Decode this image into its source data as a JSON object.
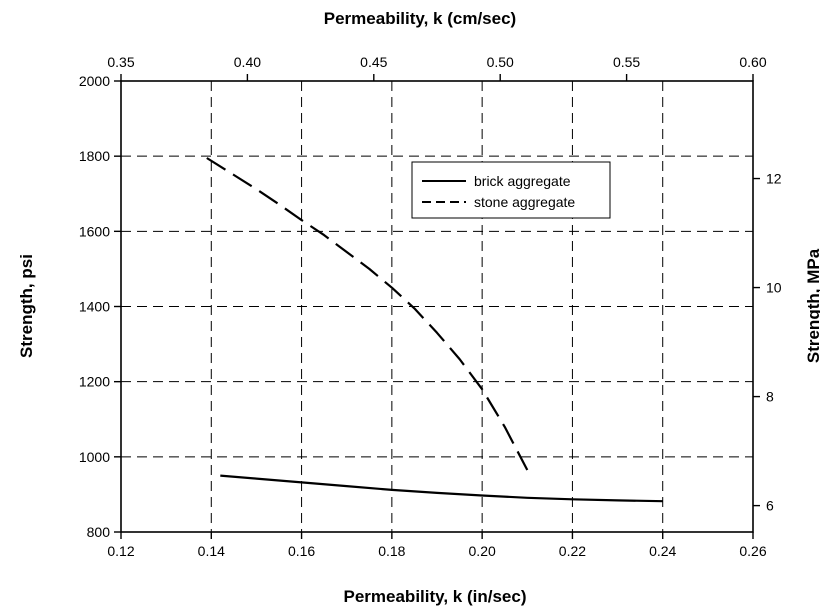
{
  "chart_data": {
    "type": "line",
    "xlabel": "Permeability, k (in/sec)",
    "x2label": "Permeability, k (cm/sec)",
    "ylabel": "Strength, psi",
    "y2label": "Strength, MPa",
    "xlim": [
      0.12,
      0.26
    ],
    "x2lim": [
      0.35,
      0.6
    ],
    "ylim": [
      800,
      2000
    ],
    "y2_ticks_shown": [
      6,
      8,
      10,
      12
    ],
    "x_ticks": [
      "0.12",
      "0.14",
      "0.16",
      "0.18",
      "0.20",
      "0.22",
      "0.24",
      "0.26"
    ],
    "x2_ticks": [
      "0.35",
      "0.40",
      "0.45",
      "0.50",
      "0.55",
      "0.60"
    ],
    "y_ticks": [
      "800",
      "1000",
      "1200",
      "1400",
      "1600",
      "1800",
      "2000"
    ],
    "y2_ticks": [
      "6",
      "8",
      "10",
      "12"
    ],
    "grid": true,
    "legend_position": "top-right",
    "series": [
      {
        "name": "brick aggregate",
        "style": "solid",
        "x": [
          0.142,
          0.15,
          0.16,
          0.17,
          0.18,
          0.19,
          0.2,
          0.21,
          0.22,
          0.23,
          0.24
        ],
        "y": [
          950,
          942,
          932,
          922,
          912,
          904,
          897,
          891,
          887,
          884,
          882
        ]
      },
      {
        "name": "stone aggregate",
        "style": "dashed",
        "x": [
          0.139,
          0.145,
          0.15,
          0.155,
          0.16,
          0.165,
          0.17,
          0.175,
          0.18,
          0.185,
          0.19,
          0.195,
          0.2,
          0.205,
          0.21
        ],
        "y": [
          1795,
          1750,
          1712,
          1672,
          1630,
          1590,
          1545,
          1500,
          1450,
          1395,
          1330,
          1260,
          1180,
          1080,
          965
        ]
      }
    ]
  }
}
